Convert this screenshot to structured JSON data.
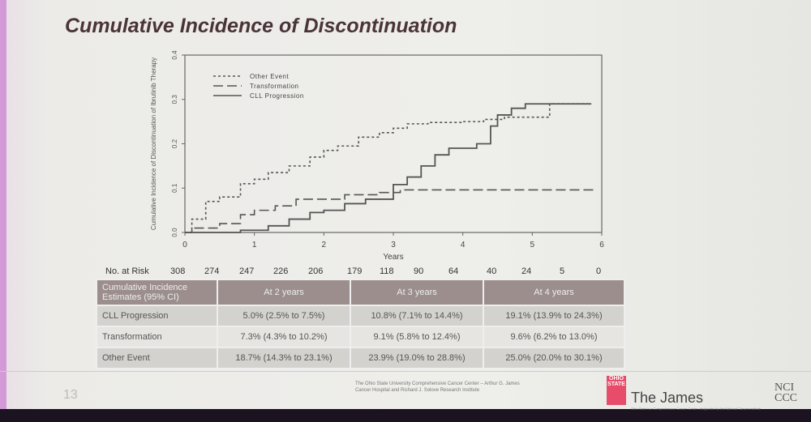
{
  "slide": {
    "title": "Cumulative Incidence of Discontinuation",
    "page": "13"
  },
  "chart_data": {
    "type": "line",
    "step": true,
    "ylabel": "Cumulative Incidence of Discontinuation of Ibrutinib Therapy",
    "xlabel": "Years",
    "xlim": [
      0,
      6
    ],
    "ylim": [
      0,
      0.4
    ],
    "xticks": [
      "0",
      "1",
      "2",
      "3",
      "4",
      "5",
      "6"
    ],
    "yticks": [
      "0.0",
      "0.1",
      "0.2",
      "0.3",
      "0.4"
    ],
    "legend_position": "top-left",
    "series": [
      {
        "name": "Other Event",
        "style": "dotted",
        "x": [
          0,
          0.1,
          0.3,
          0.5,
          0.8,
          1.0,
          1.2,
          1.5,
          1.8,
          2.0,
          2.2,
          2.5,
          2.8,
          3.0,
          3.2,
          3.5,
          4.0,
          4.3,
          4.6,
          5.25,
          5.85
        ],
        "y": [
          0,
          0.03,
          0.07,
          0.08,
          0.11,
          0.12,
          0.135,
          0.15,
          0.17,
          0.185,
          0.195,
          0.215,
          0.225,
          0.235,
          0.245,
          0.248,
          0.25,
          0.255,
          0.26,
          0.29,
          0.29
        ]
      },
      {
        "name": "Transformation",
        "style": "dashed",
        "x": [
          0,
          0.1,
          0.5,
          0.8,
          1.0,
          1.3,
          1.6,
          2.3,
          2.8,
          3.1,
          5.9
        ],
        "y": [
          0,
          0.01,
          0.02,
          0.04,
          0.05,
          0.06,
          0.075,
          0.085,
          0.09,
          0.096,
          0.096
        ]
      },
      {
        "name": "CLL Progression",
        "style": "solid",
        "x": [
          0,
          0.8,
          1.2,
          1.5,
          1.8,
          2.0,
          2.3,
          2.6,
          3.0,
          3.2,
          3.4,
          3.6,
          3.8,
          4.2,
          4.4,
          4.5,
          4.7,
          4.9,
          5.85
        ],
        "y": [
          0,
          0.005,
          0.015,
          0.03,
          0.045,
          0.05,
          0.065,
          0.075,
          0.108,
          0.125,
          0.15,
          0.175,
          0.19,
          0.2,
          0.24,
          0.265,
          0.28,
          0.29,
          0.29
        ]
      }
    ]
  },
  "risk": {
    "label": "No. at Risk",
    "values": [
      "308",
      "274",
      "247",
      "226",
      "206",
      "179",
      "118",
      "90",
      "64",
      "40",
      "24",
      "5",
      "0"
    ]
  },
  "table": {
    "headers": [
      "Cumulative Incidence Estimates (95% CI)",
      "At 2 years",
      "At 3 years",
      "At 4 years"
    ],
    "rows": [
      [
        "CLL Progression",
        "5.0% (2.5% to 7.5%)",
        "10.8% (7.1% to 14.4%)",
        "19.1% (13.9% to 24.3%)"
      ],
      [
        "Transformation",
        "7.3% (4.3% to 10.2%)",
        "9.1% (5.8% to 12.4%)",
        "9.6% (6.2% to 13.0%)"
      ],
      [
        "Other Event",
        "18.7% (14.3% to 23.1%)",
        "23.9% (19.0% to 28.8%)",
        "25.0% (20.0% to 30.1%)"
      ]
    ]
  },
  "footer": {
    "institution": "The Ohio State University Comprehensive Cancer Center – Arthur G. James Cancer Hospital and Richard J. Solove Research Institute",
    "logo": "OHIO STATE",
    "brand": "The James",
    "brand_sub": "Ohio State is a Comprehensive Cancer Center designated by the National Cancer Institute",
    "nci": "NCI CCC"
  }
}
